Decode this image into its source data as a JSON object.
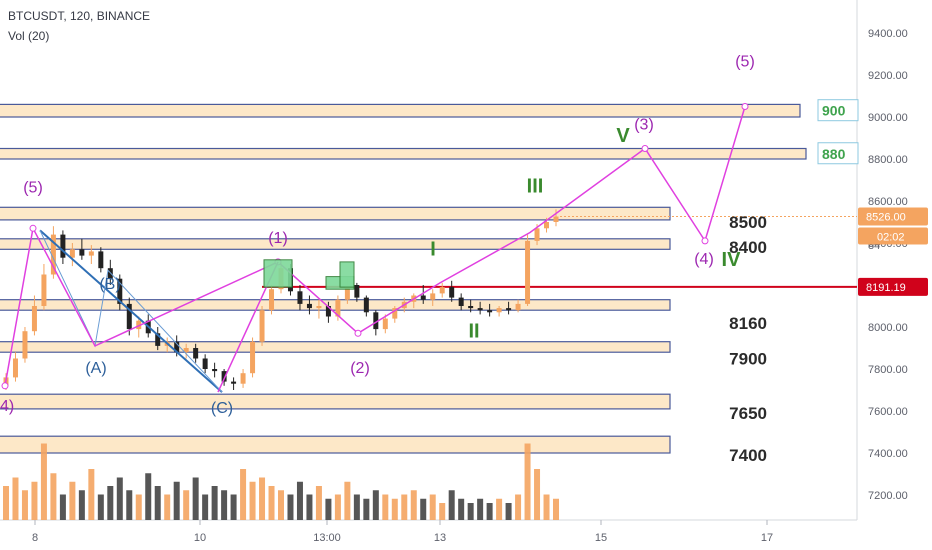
{
  "header": {
    "symbol_line": "BTCUSDT, 120, BINANCE",
    "indicator_line": "Vol (20)"
  },
  "colors": {
    "up": "#f4a460",
    "down": "#222222",
    "wave": "#e040e0",
    "abc": "#2f6fb5",
    "support": "#d0021b",
    "zone_fill": "#fde8c8",
    "zone_border": "#4a5a9a",
    "green": "#3a8a2e"
  },
  "chart_data": {
    "type": "candlestick",
    "price_axis": {
      "min": 7100,
      "max": 9600,
      "ticks": [
        7200,
        7400,
        7600,
        7800,
        8000,
        8200,
        8400,
        8600,
        8800,
        9000,
        9200,
        9400
      ],
      "tick_labels": [
        "7200.00",
        "7400.00",
        "7600.00",
        "7800.00",
        "8000.00",
        "8200.00",
        "8400.00",
        "8600.00",
        "8800.00",
        "9000.00",
        "9200.00",
        "9400.00"
      ]
    },
    "time_axis": {
      "ticks": [
        "8",
        "10",
        "13:00",
        "13",
        "15",
        "17"
      ]
    },
    "price_labels": {
      "last": "8526.00",
      "countdown": "02:02",
      "support": "8191.19",
      "hidden_tick": "84"
    },
    "support_line": 8191.19,
    "zones": [
      {
        "low": 9000,
        "high": 9060
      },
      {
        "low": 8800,
        "high": 8850
      },
      {
        "low": 8510,
        "high": 8570
      },
      {
        "low": 8370,
        "high": 8420
      },
      {
        "low": 8080,
        "high": 8130
      },
      {
        "low": 7880,
        "high": 7930
      },
      {
        "low": 7610,
        "high": 7680
      },
      {
        "low": 7400,
        "high": 7480
      }
    ],
    "level_labels": [
      {
        "text": "8500",
        "price": 8500
      },
      {
        "text": "8400",
        "price": 8380
      },
      {
        "text": "8160",
        "price": 8020
      },
      {
        "text": "7900",
        "price": 7850
      },
      {
        "text": "7650",
        "price": 7590
      },
      {
        "text": "7400",
        "price": 7390
      }
    ],
    "target_boxes": [
      {
        "text": "900",
        "price": 9030
      },
      {
        "text": "880",
        "price": 8825
      }
    ],
    "candles": [
      [
        7720,
        7780,
        7700,
        7760
      ],
      [
        7760,
        7880,
        7740,
        7850
      ],
      [
        7850,
        8000,
        7830,
        7980
      ],
      [
        7980,
        8150,
        7960,
        8100
      ],
      [
        8100,
        8300,
        8080,
        8250
      ],
      [
        8250,
        8480,
        8230,
        8440
      ],
      [
        8440,
        8460,
        8300,
        8330
      ],
      [
        8330,
        8400,
        8290,
        8370
      ],
      [
        8370,
        8420,
        8320,
        8340
      ],
      [
        8340,
        8390,
        8300,
        8360
      ],
      [
        8360,
        8380,
        8260,
        8280
      ],
      [
        8280,
        8320,
        8200,
        8230
      ],
      [
        8230,
        8250,
        8080,
        8110
      ],
      [
        8110,
        8140,
        7960,
        7990
      ],
      [
        7990,
        8050,
        7950,
        8030
      ],
      [
        8030,
        8060,
        7950,
        7970
      ],
      [
        7970,
        8000,
        7890,
        7910
      ],
      [
        7910,
        7950,
        7880,
        7930
      ],
      [
        7930,
        7960,
        7860,
        7880
      ],
      [
        7880,
        7920,
        7850,
        7900
      ],
      [
        7900,
        7920,
        7830,
        7850
      ],
      [
        7850,
        7870,
        7780,
        7800
      ],
      [
        7800,
        7830,
        7760,
        7790
      ],
      [
        7790,
        7800,
        7720,
        7740
      ],
      [
        7740,
        7760,
        7700,
        7730
      ],
      [
        7730,
        7800,
        7710,
        7780
      ],
      [
        7780,
        7950,
        7760,
        7930
      ],
      [
        7930,
        8100,
        7910,
        8080
      ],
      [
        8080,
        8200,
        8060,
        8180
      ],
      [
        8180,
        8310,
        8160,
        8280
      ],
      [
        8280,
        8300,
        8150,
        8170
      ],
      [
        8170,
        8200,
        8080,
        8110
      ],
      [
        8110,
        8150,
        8060,
        8090
      ],
      [
        8090,
        8130,
        8040,
        8100
      ],
      [
        8100,
        8120,
        8020,
        8050
      ],
      [
        8050,
        8150,
        8030,
        8130
      ],
      [
        8130,
        8230,
        8110,
        8200
      ],
      [
        8200,
        8210,
        8120,
        8140
      ],
      [
        8140,
        8150,
        8050,
        8070
      ],
      [
        8070,
        8080,
        7960,
        7990
      ],
      [
        7990,
        8060,
        7970,
        8040
      ],
      [
        8040,
        8100,
        8020,
        8090
      ],
      [
        8090,
        8140,
        8070,
        8120
      ],
      [
        8120,
        8160,
        8090,
        8150
      ],
      [
        8150,
        8200,
        8110,
        8130
      ],
      [
        8130,
        8180,
        8100,
        8160
      ],
      [
        8160,
        8210,
        8140,
        8190
      ],
      [
        8190,
        8220,
        8120,
        8140
      ],
      [
        8140,
        8160,
        8080,
        8100
      ],
      [
        8100,
        8130,
        8070,
        8090
      ],
      [
        8090,
        8120,
        8060,
        8080
      ],
      [
        8080,
        8110,
        8050,
        8070
      ],
      [
        8070,
        8100,
        8050,
        8090
      ],
      [
        8090,
        8120,
        8060,
        8080
      ],
      [
        8080,
        8130,
        8070,
        8110
      ],
      [
        8110,
        8440,
        8100,
        8410
      ],
      [
        8410,
        8490,
        8390,
        8470
      ],
      [
        8470,
        8520,
        8450,
        8500
      ],
      [
        8500,
        8560,
        8480,
        8526
      ]
    ],
    "volumes": [
      0.4,
      0.5,
      0.35,
      0.45,
      0.9,
      0.55,
      0.3,
      0.45,
      0.35,
      0.6,
      0.3,
      0.4,
      0.5,
      0.35,
      0.3,
      0.55,
      0.4,
      0.3,
      0.45,
      0.35,
      0.5,
      0.3,
      0.4,
      0.35,
      0.3,
      0.6,
      0.45,
      0.5,
      0.4,
      0.35,
      0.3,
      0.45,
      0.3,
      0.4,
      0.25,
      0.3,
      0.45,
      0.3,
      0.25,
      0.35,
      0.3,
      0.25,
      0.3,
      0.35,
      0.25,
      0.3,
      0.2,
      0.35,
      0.25,
      0.2,
      0.25,
      0.2,
      0.25,
      0.2,
      0.3,
      0.9,
      0.6,
      0.3,
      0.25
    ],
    "wave_labels": {
      "purple": [
        "(5)",
        "(1)",
        "(2)",
        "(3)",
        "(4)",
        "(5)",
        "4)"
      ],
      "blue": [
        "(B)",
        "(A)",
        "(C)"
      ],
      "green": [
        "I",
        "II",
        "III",
        "IV",
        "V"
      ]
    }
  }
}
